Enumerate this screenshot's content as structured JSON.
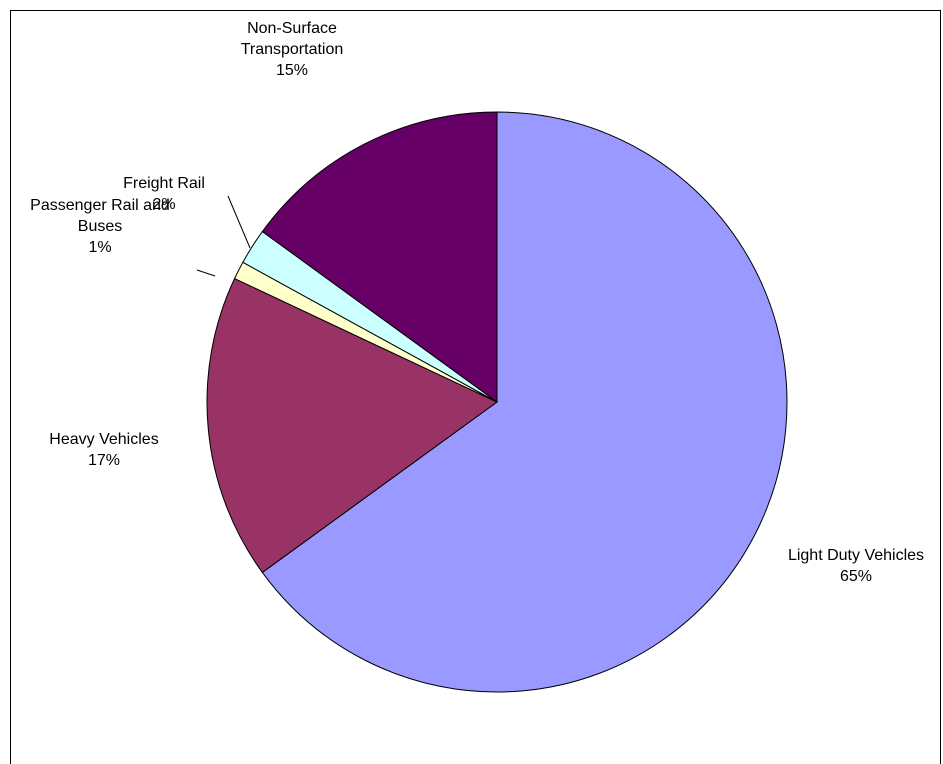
{
  "chart_data": {
    "type": "pie",
    "slices": [
      {
        "label": "Light Duty Vehicles",
        "percent_label": "65%",
        "value": 65,
        "color": "#9999FF"
      },
      {
        "label": "Heavy Vehicles",
        "percent_label": "17%",
        "value": 17,
        "color": "#993366"
      },
      {
        "label": "Passenger Rail and Buses",
        "percent_label": "1%",
        "value": 1,
        "color": "#FFFFCC"
      },
      {
        "label": "Freight Rail",
        "percent_label": "2%",
        "value": 2,
        "color": "#CCFFFF"
      },
      {
        "label": "Non-Surface Transportation",
        "percent_label": "15%",
        "value": 15,
        "color": "#660066"
      }
    ]
  }
}
